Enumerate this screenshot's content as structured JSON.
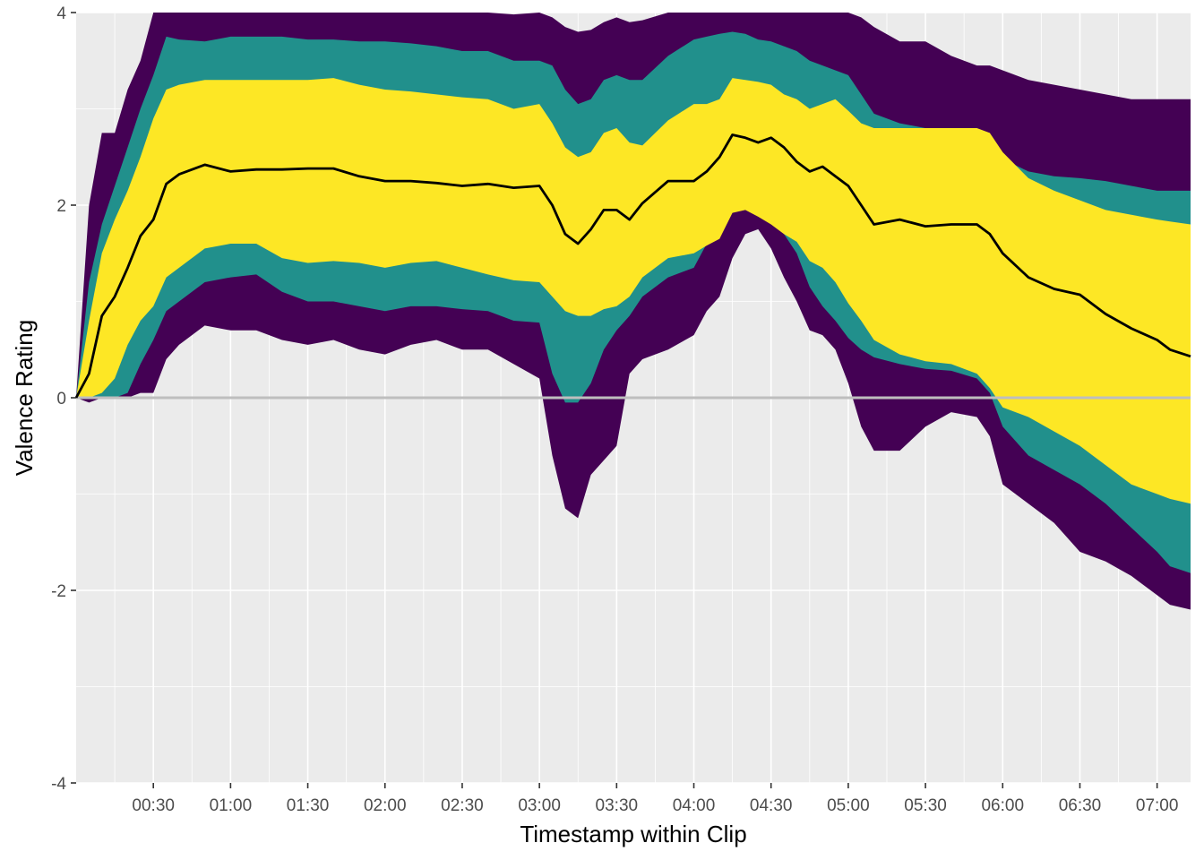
{
  "chart_data": {
    "type": "area",
    "xlabel": "Timestamp within Clip",
    "ylabel": "Valence Rating",
    "x_unit": "seconds",
    "xlim_seconds": [
      0,
      433
    ],
    "ylim": [
      -4,
      4
    ],
    "x_ticks": [
      {
        "t": 30,
        "label": "00:30"
      },
      {
        "t": 60,
        "label": "01:00"
      },
      {
        "t": 90,
        "label": "01:30"
      },
      {
        "t": 120,
        "label": "02:00"
      },
      {
        "t": 150,
        "label": "02:30"
      },
      {
        "t": 180,
        "label": "03:00"
      },
      {
        "t": 210,
        "label": "03:30"
      },
      {
        "t": 240,
        "label": "04:00"
      },
      {
        "t": 270,
        "label": "04:30"
      },
      {
        "t": 300,
        "label": "05:00"
      },
      {
        "t": 330,
        "label": "05:30"
      },
      {
        "t": 360,
        "label": "06:00"
      },
      {
        "t": 390,
        "label": "06:30"
      },
      {
        "t": 420,
        "label": "07:00"
      }
    ],
    "y_ticks": [
      {
        "v": 4,
        "label": "4"
      },
      {
        "v": 2,
        "label": "2"
      },
      {
        "v": 0,
        "label": "0"
      },
      {
        "v": -2,
        "label": "-2"
      },
      {
        "v": -4,
        "label": "-4"
      }
    ],
    "grid": true,
    "reference_line": 0,
    "colors": {
      "panel": "#ebebeb",
      "grid": "#ffffff",
      "outer_band": "#440154",
      "middle_band": "#21908c",
      "inner_band": "#fde725",
      "mean_line": "#000000",
      "zero_line": "#bebebe"
    },
    "x_seconds": [
      0,
      5,
      10,
      15,
      20,
      25,
      30,
      35,
      40,
      50,
      60,
      70,
      80,
      90,
      100,
      110,
      120,
      130,
      140,
      150,
      160,
      170,
      180,
      185,
      190,
      195,
      200,
      205,
      210,
      215,
      220,
      230,
      240,
      245,
      250,
      255,
      260,
      265,
      270,
      275,
      280,
      285,
      290,
      295,
      300,
      305,
      310,
      320,
      330,
      340,
      350,
      355,
      360,
      370,
      380,
      390,
      400,
      410,
      420,
      425,
      433
    ],
    "mean": [
      0,
      0.25,
      0.85,
      1.05,
      1.35,
      1.68,
      1.85,
      2.22,
      2.32,
      2.42,
      2.35,
      2.37,
      2.37,
      2.38,
      2.38,
      2.3,
      2.25,
      2.25,
      2.23,
      2.2,
      2.22,
      2.18,
      2.2,
      2.0,
      1.7,
      1.6,
      1.75,
      1.95,
      1.95,
      1.85,
      2.02,
      2.25,
      2.25,
      2.35,
      2.5,
      2.73,
      2.7,
      2.65,
      2.7,
      2.6,
      2.45,
      2.35,
      2.4,
      2.3,
      2.2,
      2.0,
      1.8,
      1.85,
      1.78,
      1.8,
      1.8,
      1.7,
      1.5,
      1.25,
      1.13,
      1.07,
      0.87,
      0.72,
      0.6,
      0.5,
      0.43
    ],
    "band_outer_upper": [
      0,
      2.0,
      2.75,
      2.75,
      3.2,
      3.5,
      4.0,
      4.0,
      4.0,
      4.0,
      4.0,
      4.0,
      4.0,
      4.0,
      4.0,
      4.0,
      4.0,
      4.0,
      4.0,
      4.0,
      4.0,
      3.98,
      4.0,
      3.95,
      3.85,
      3.8,
      3.82,
      3.9,
      3.95,
      3.9,
      3.92,
      4.0,
      4.0,
      4.0,
      4.0,
      4.0,
      4.0,
      4.0,
      4.0,
      4.0,
      4.0,
      4.0,
      4.0,
      4.0,
      4.0,
      3.95,
      3.85,
      3.7,
      3.7,
      3.55,
      3.45,
      3.45,
      3.4,
      3.3,
      3.25,
      3.2,
      3.15,
      3.1,
      3.1,
      3.1,
      3.1
    ],
    "band_middle_upper": [
      0,
      1.2,
      1.8,
      2.2,
      2.6,
      3.0,
      3.35,
      3.75,
      3.72,
      3.7,
      3.75,
      3.75,
      3.75,
      3.72,
      3.72,
      3.7,
      3.7,
      3.68,
      3.65,
      3.6,
      3.6,
      3.5,
      3.5,
      3.45,
      3.2,
      3.05,
      3.1,
      3.3,
      3.35,
      3.3,
      3.3,
      3.55,
      3.72,
      3.75,
      3.78,
      3.8,
      3.78,
      3.72,
      3.7,
      3.65,
      3.6,
      3.5,
      3.45,
      3.4,
      3.35,
      3.15,
      2.95,
      2.85,
      2.8,
      2.8,
      2.72,
      2.6,
      2.48,
      2.35,
      2.3,
      2.28,
      2.25,
      2.2,
      2.15,
      2.15,
      2.15
    ],
    "band_inner_upper": [
      0,
      0.8,
      1.5,
      1.85,
      2.15,
      2.5,
      2.9,
      3.2,
      3.25,
      3.3,
      3.3,
      3.3,
      3.3,
      3.3,
      3.32,
      3.25,
      3.2,
      3.18,
      3.15,
      3.12,
      3.1,
      3.0,
      3.05,
      2.85,
      2.6,
      2.5,
      2.55,
      2.75,
      2.8,
      2.65,
      2.62,
      2.88,
      3.05,
      3.05,
      3.1,
      3.32,
      3.3,
      3.28,
      3.25,
      3.15,
      3.1,
      3.0,
      3.05,
      3.1,
      2.98,
      2.85,
      2.8,
      2.8,
      2.8,
      2.8,
      2.8,
      2.75,
      2.55,
      2.28,
      2.15,
      2.05,
      1.95,
      1.9,
      1.85,
      1.83,
      1.8
    ],
    "band_inner_lower": [
      0,
      0,
      0.05,
      0.2,
      0.55,
      0.8,
      0.95,
      1.25,
      1.35,
      1.55,
      1.6,
      1.6,
      1.45,
      1.4,
      1.42,
      1.4,
      1.35,
      1.4,
      1.42,
      1.35,
      1.28,
      1.22,
      1.2,
      1.05,
      0.9,
      0.85,
      0.85,
      0.92,
      0.95,
      1.05,
      1.25,
      1.45,
      1.5,
      1.58,
      1.65,
      1.92,
      1.95,
      1.88,
      1.8,
      1.7,
      1.62,
      1.42,
      1.35,
      1.2,
      0.98,
      0.8,
      0.6,
      0.45,
      0.38,
      0.35,
      0.25,
      0.1,
      -0.1,
      -0.2,
      -0.35,
      -0.5,
      -0.7,
      -0.9,
      -1.0,
      -1.05,
      -1.1
    ],
    "band_middle_lower": [
      0,
      0,
      0,
      0,
      0.05,
      0.35,
      0.6,
      0.9,
      1.0,
      1.2,
      1.25,
      1.28,
      1.1,
      1.0,
      1.0,
      0.95,
      0.9,
      0.95,
      0.95,
      0.92,
      0.9,
      0.8,
      0.78,
      0.25,
      -0.05,
      -0.05,
      0.15,
      0.5,
      0.7,
      0.85,
      1.05,
      1.25,
      1.35,
      1.6,
      1.75,
      2.05,
      2.15,
      2.15,
      2.0,
      1.7,
      1.5,
      1.15,
      0.95,
      0.8,
      0.62,
      0.5,
      0.42,
      0.35,
      0.3,
      0.28,
      0.2,
      0.05,
      -0.3,
      -0.6,
      -0.75,
      -0.9,
      -1.1,
      -1.35,
      -1.6,
      -1.75,
      -1.82
    ],
    "band_outer_lower": [
      0,
      -0.05,
      0,
      0,
      0,
      0.05,
      0.05,
      0.4,
      0.55,
      0.75,
      0.7,
      0.7,
      0.6,
      0.55,
      0.6,
      0.5,
      0.45,
      0.55,
      0.6,
      0.5,
      0.5,
      0.35,
      0.2,
      -0.6,
      -1.15,
      -1.25,
      -0.8,
      -0.65,
      -0.5,
      0.25,
      0.4,
      0.5,
      0.65,
      0.9,
      1.05,
      1.45,
      1.7,
      1.75,
      1.55,
      1.25,
      1.0,
      0.7,
      0.65,
      0.5,
      0.15,
      -0.3,
      -0.55,
      -0.55,
      -0.3,
      -0.15,
      -0.2,
      -0.4,
      -0.9,
      -1.1,
      -1.3,
      -1.6,
      -1.7,
      -1.85,
      -2.05,
      -2.15,
      -2.2
    ]
  }
}
